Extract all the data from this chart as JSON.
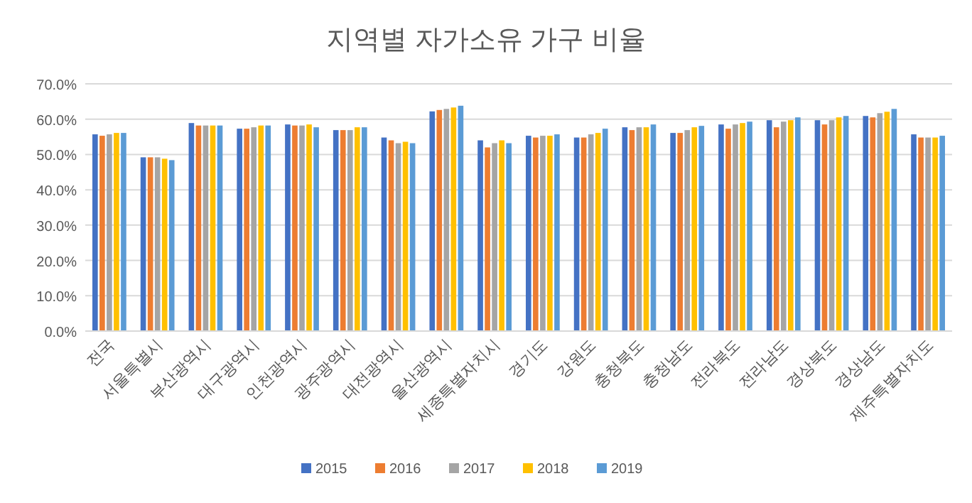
{
  "chart_data": {
    "type": "bar",
    "title": "지역별 자가소유 가구 비율",
    "categories": [
      "전국",
      "서울특별시",
      "부산광역시",
      "대구광역시",
      "인천광역시",
      "광주광역시",
      "대전광역시",
      "울산광역시",
      "세종특별자치시",
      "경기도",
      "강원도",
      "충청북도",
      "충청남도",
      "전라북도",
      "전라남도",
      "경상북도",
      "경상남도",
      "제주특별자치도"
    ],
    "series": [
      {
        "name": "2015",
        "color": "#4472c4",
        "values": [
          55.7,
          49.2,
          58.9,
          57.3,
          58.5,
          56.9,
          54.8,
          62.2,
          54.0,
          55.3,
          54.8,
          57.7,
          56.1,
          58.5,
          59.7,
          59.7,
          60.9,
          55.7
        ]
      },
      {
        "name": "2016",
        "color": "#ed7d31",
        "values": [
          55.3,
          49.2,
          58.2,
          57.3,
          58.2,
          56.9,
          54.0,
          62.6,
          52.0,
          54.8,
          54.8,
          56.9,
          56.1,
          57.3,
          57.7,
          58.5,
          60.5,
          54.8
        ]
      },
      {
        "name": "2017",
        "color": "#a5a5a5",
        "values": [
          55.7,
          49.2,
          58.2,
          57.7,
          58.2,
          56.9,
          53.2,
          62.9,
          53.2,
          55.3,
          55.7,
          57.7,
          56.9,
          58.5,
          59.3,
          59.7,
          61.7,
          54.8
        ]
      },
      {
        "name": "2018",
        "color": "#ffc000",
        "values": [
          56.1,
          48.8,
          58.2,
          58.2,
          58.5,
          57.7,
          53.6,
          63.3,
          54.0,
          55.3,
          56.1,
          57.7,
          57.7,
          58.9,
          59.7,
          60.5,
          62.1,
          54.8
        ]
      },
      {
        "name": "2019",
        "color": "#5b9bd5",
        "values": [
          56.1,
          48.4,
          58.2,
          58.2,
          57.7,
          57.7,
          53.2,
          63.8,
          53.2,
          55.7,
          57.3,
          58.5,
          58.1,
          59.3,
          60.5,
          60.9,
          62.9,
          55.3
        ]
      }
    ],
    "ylim": [
      0,
      70
    ],
    "yticks": [
      {
        "value": 0,
        "label": "0.0%"
      },
      {
        "value": 10,
        "label": "10.0%"
      },
      {
        "value": 20,
        "label": "20.0%"
      },
      {
        "value": 30,
        "label": "30.0%"
      },
      {
        "value": 40,
        "label": "40.0%"
      },
      {
        "value": 50,
        "label": "50.0%"
      },
      {
        "value": 60,
        "label": "60.0%"
      },
      {
        "value": 70,
        "label": "70.0%"
      }
    ],
    "grid": "y",
    "legend": "bottom"
  }
}
